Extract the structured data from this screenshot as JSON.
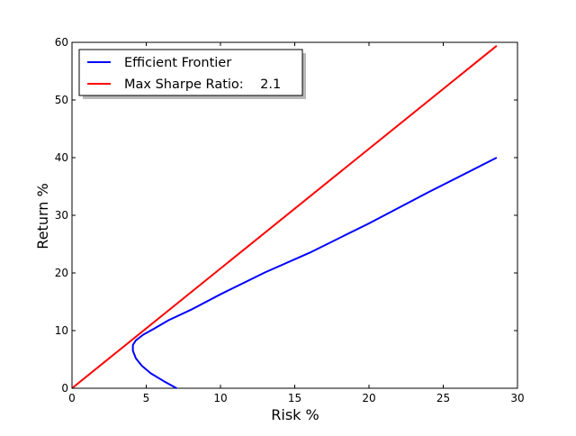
{
  "chart_data": {
    "type": "line",
    "xlabel": "Risk %",
    "ylabel": "Return %",
    "xlim": [
      0,
      30
    ],
    "ylim": [
      0,
      60
    ],
    "xticks": [
      "0",
      "5",
      "10",
      "15",
      "20",
      "25",
      "30"
    ],
    "yticks": [
      "0",
      "10",
      "20",
      "30",
      "40",
      "50",
      "60"
    ],
    "grid": false,
    "legend_position": "top-left",
    "series": [
      {
        "name": "Efficient Frontier",
        "color": "#0000ff",
        "x": [
          7.05,
          6.2,
          5.3,
          4.7,
          4.3,
          4.1,
          4.1,
          4.3,
          4.8,
          5.5,
          6.5,
          8.0,
          10.0,
          13.0,
          16.0,
          20.0,
          24.0,
          28.6
        ],
        "y": [
          0,
          1.2,
          2.6,
          3.9,
          5.2,
          6.5,
          7.5,
          8.3,
          9.3,
          10.3,
          11.8,
          13.6,
          16.3,
          20.1,
          23.5,
          28.6,
          34.0,
          40.0
        ]
      },
      {
        "name": "Max Sharpe Ratio:    2.1",
        "color": "#ff0000",
        "x": [
          0,
          28.6
        ],
        "y": [
          0,
          59.4
        ]
      }
    ]
  }
}
